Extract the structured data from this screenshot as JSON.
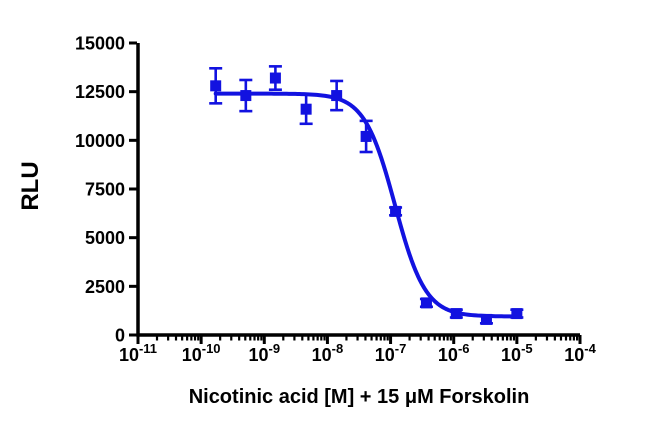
{
  "chart_data": {
    "type": "scatter",
    "title": "",
    "xlabel": "Nicotinic acid [M] + 15 μM Forskolin",
    "ylabel": "RLU",
    "x_scale": "log",
    "xlim_log10": [
      -11,
      -4
    ],
    "ylim": [
      0,
      15000
    ],
    "grid": false,
    "legend": "none",
    "y_ticks": [
      0,
      2500,
      5000,
      7500,
      10000,
      12500,
      15000
    ],
    "x_tick_exponents": [
      -11,
      -10,
      -9,
      -8,
      -7,
      -6,
      -5,
      -4
    ],
    "x_tick_base": "10",
    "axis_color": "#000000",
    "background": "#ffffff",
    "series": [
      {
        "name": "Nicotinic acid + 15 uM Forskolin",
        "color": "#1212e0",
        "marker": "square",
        "points": [
          {
            "conc_M": 1.7e-10,
            "rlu": 12800,
            "err": 900
          },
          {
            "conc_M": 5.1e-10,
            "rlu": 12300,
            "err": 800
          },
          {
            "conc_M": 1.5e-09,
            "rlu": 13200,
            "err": 600
          },
          {
            "conc_M": 4.6e-09,
            "rlu": 11600,
            "err": 750
          },
          {
            "conc_M": 1.4e-08,
            "rlu": 12300,
            "err": 750
          },
          {
            "conc_M": 4.1e-08,
            "rlu": 10200,
            "err": 800
          },
          {
            "conc_M": 1.2e-07,
            "rlu": 6350,
            "err": 200
          },
          {
            "conc_M": 3.7e-07,
            "rlu": 1650,
            "err": 200
          },
          {
            "conc_M": 1.1e-06,
            "rlu": 1100,
            "err": 200
          },
          {
            "conc_M": 3.3e-06,
            "rlu": 800,
            "err": 200
          },
          {
            "conc_M": 1e-05,
            "rlu": 1100,
            "err": 200
          }
        ],
        "fit": {
          "model": "hill-sigmoid",
          "top": 12400,
          "bottom": 950,
          "log_ic50": -6.93,
          "hill_slope": 1.8
        }
      }
    ]
  }
}
